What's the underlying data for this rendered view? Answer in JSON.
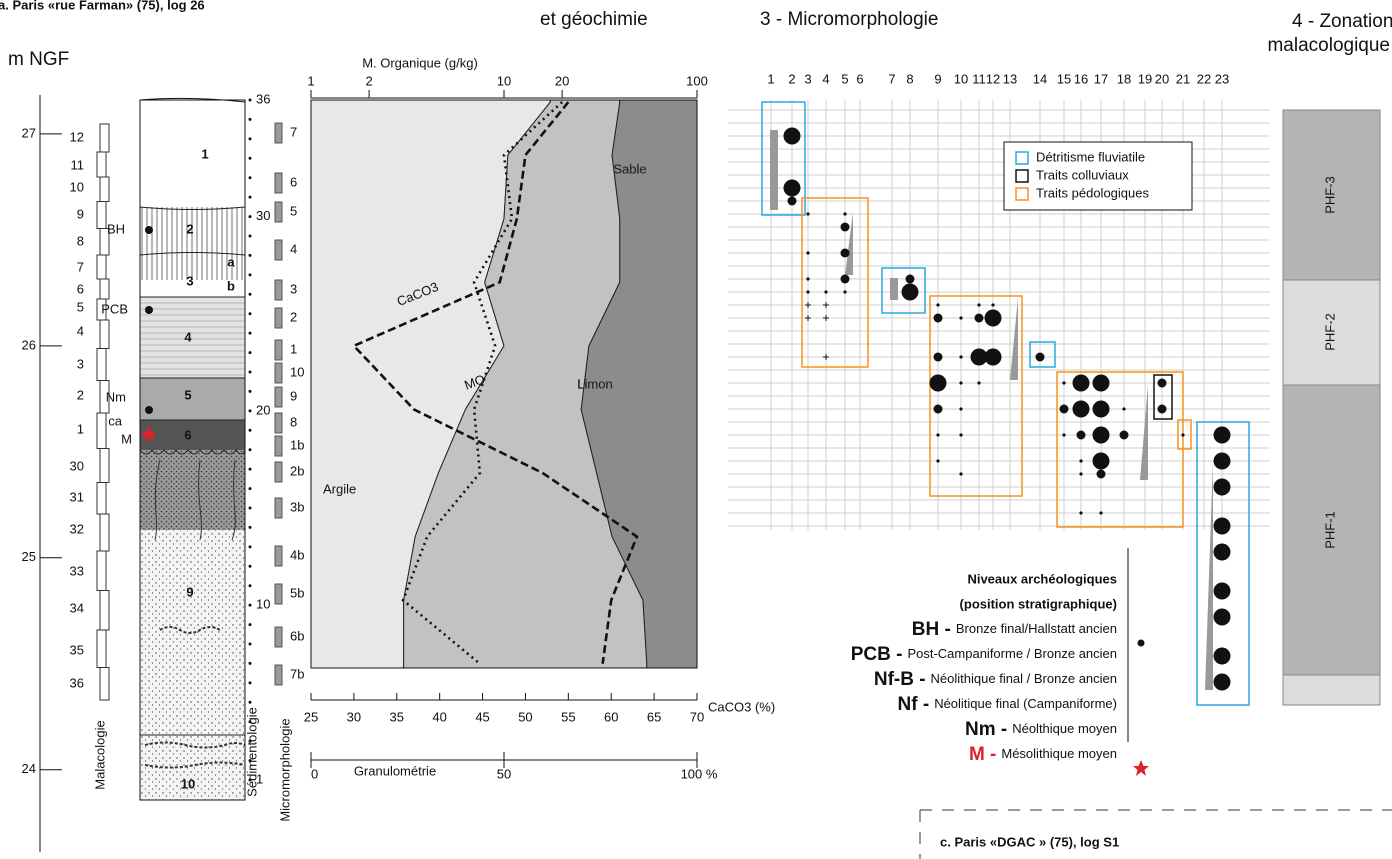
{
  "header": {
    "title_a": "a. Paris «rue Farman» (75), log 26",
    "section2": "et géochimie",
    "section3": "3 - Micromorphologie",
    "section4": [
      "4 - Zonation",
      "malacologique"
    ]
  },
  "log": {
    "axis_label": "m NGF",
    "depth_ticks": [
      27,
      26,
      25,
      24
    ],
    "malacology_samples": [
      "12",
      "11",
      "10",
      "9",
      "8",
      "7",
      "6",
      "5",
      "4",
      "3",
      "2",
      "1",
      "30",
      "31",
      "32",
      "33",
      "34",
      "35",
      "36"
    ],
    "layers": [
      "1",
      "2",
      "3",
      "4",
      "5",
      "6",
      "9",
      "10"
    ],
    "sublayers": [
      "a",
      "b"
    ],
    "archaeo_marks": [
      "BH",
      "PCB",
      "Nm",
      "ca",
      "M"
    ],
    "sedimentology_samples": [
      36,
      30,
      20,
      10,
      1
    ],
    "micromorphology_samples": [
      "7",
      "6",
      "5",
      "4",
      "3",
      "2",
      "1",
      "10",
      "9",
      "8",
      "1b",
      "2b",
      "3b",
      "4b",
      "5b",
      "6b",
      "7b"
    ],
    "column_labels": [
      "Malacologie",
      "Sédimentologie",
      "Micromorphologie"
    ]
  },
  "chart_data": {
    "type": "area",
    "x": [
      27.15,
      26.9,
      26.6,
      26.3,
      26.0,
      25.7,
      25.4,
      25.1,
      24.8,
      24.5
    ],
    "xlim": [
      27.16,
      24.48
    ],
    "series": [
      {
        "name": "Argile",
        "color": "#e8e8e8",
        "values": [
          62,
          51,
          50,
          45,
          50,
          40,
          33,
          27,
          24,
          24
        ]
      },
      {
        "name": "Limon",
        "color": "#c2c2c2",
        "values": [
          18,
          27,
          30,
          35,
          22,
          30,
          41,
          51,
          62,
          63
        ]
      },
      {
        "name": "Sable",
        "color": "#8c8c8c",
        "values": [
          20,
          22,
          20,
          20,
          28,
          30,
          26,
          22,
          14,
          13
        ]
      },
      {
        "name": "CaCO3",
        "axis": "y2",
        "color": "#111111",
        "dash": "dashed",
        "values": [
          55,
          50,
          49,
          47,
          30,
          37,
          52,
          63,
          60,
          59
        ]
      },
      {
        "name": "MO",
        "axis": "y3",
        "color": "#111111",
        "dash": "dotted",
        "values": [
          20,
          10,
          11,
          7,
          9,
          7,
          7.5,
          4,
          3,
          7.5
        ]
      }
    ],
    "y_label": "Granulométrie",
    "ylim": [
      0,
      100
    ],
    "yticks": [
      0,
      50,
      {
        "value": 100,
        "label": "100 %"
      }
    ],
    "y2_label": "CaCO3 (%)",
    "y2lim": [
      25,
      70
    ],
    "y2ticks": [
      25,
      30,
      35,
      40,
      45,
      50,
      55,
      60,
      65,
      70
    ],
    "y3_label": "M. Organique (g/kg)",
    "y3lim": [
      1,
      100
    ],
    "y3ticks": [
      1,
      2,
      10,
      20,
      100
    ],
    "y3_log": true
  },
  "micromorphology": {
    "columns": [
      1,
      2,
      3,
      4,
      5,
      6,
      7,
      8,
      9,
      10,
      11,
      12,
      13,
      14,
      15,
      16,
      17,
      18,
      19,
      20,
      21,
      22,
      23
    ],
    "legend": [
      {
        "label": "Détritisme fluviatile",
        "color": "#29abe2"
      },
      {
        "label": "Traits colluviaux",
        "color": "#111111"
      },
      {
        "label": "Traits pédologiques",
        "color": "#f7931e"
      }
    ],
    "dots": [
      [
        2,
        2,
        3
      ],
      [
        2,
        6,
        3
      ],
      [
        2,
        7,
        2
      ],
      [
        3,
        8,
        1
      ],
      [
        5,
        8,
        1
      ],
      [
        5,
        9,
        2
      ],
      [
        3,
        11,
        1
      ],
      [
        5,
        11,
        2
      ],
      [
        3,
        13,
        1
      ],
      [
        5,
        13,
        2
      ],
      [
        3,
        14,
        1
      ],
      [
        4,
        14,
        1
      ],
      [
        5,
        14,
        1
      ],
      [
        3,
        15,
        0
      ],
      [
        4,
        15,
        0
      ],
      [
        3,
        16,
        0
      ],
      [
        4,
        16,
        0
      ],
      [
        4,
        19,
        0
      ],
      [
        8,
        13,
        2
      ],
      [
        8,
        14,
        3
      ],
      [
        9,
        15,
        1
      ],
      [
        11,
        15,
        1
      ],
      [
        12,
        15,
        1
      ],
      [
        9,
        16,
        2
      ],
      [
        10,
        16,
        1
      ],
      [
        11,
        16,
        2
      ],
      [
        12,
        16,
        3
      ],
      [
        9,
        19,
        2
      ],
      [
        10,
        19,
        1
      ],
      [
        11,
        19,
        3
      ],
      [
        12,
        19,
        3
      ],
      [
        9,
        21,
        3
      ],
      [
        10,
        21,
        1
      ],
      [
        11,
        21,
        1
      ],
      [
        9,
        23,
        2
      ],
      [
        10,
        23,
        1
      ],
      [
        9,
        25,
        1
      ],
      [
        10,
        25,
        1
      ],
      [
        9,
        27,
        1
      ],
      [
        10,
        28,
        1
      ],
      [
        14,
        19,
        2
      ],
      [
        15,
        21,
        1
      ],
      [
        16,
        21,
        3
      ],
      [
        17,
        21,
        3
      ],
      [
        15,
        23,
        2
      ],
      [
        16,
        23,
        3
      ],
      [
        17,
        23,
        3
      ],
      [
        18,
        23,
        1
      ],
      [
        15,
        25,
        1
      ],
      [
        16,
        25,
        2
      ],
      [
        17,
        25,
        3
      ],
      [
        18,
        25,
        2
      ],
      [
        16,
        27,
        1
      ],
      [
        17,
        27,
        3
      ],
      [
        16,
        28,
        1
      ],
      [
        17,
        28,
        2
      ],
      [
        16,
        31,
        1
      ],
      [
        17,
        31,
        1
      ],
      [
        20,
        21,
        2
      ],
      [
        20,
        23,
        2
      ],
      [
        21,
        25,
        1
      ],
      [
        23,
        25,
        3
      ],
      [
        23,
        27,
        3
      ],
      [
        23,
        29,
        3
      ],
      [
        23,
        32,
        3
      ],
      [
        23,
        34,
        3
      ],
      [
        23,
        37,
        3
      ],
      [
        23,
        39,
        3
      ],
      [
        23,
        42,
        3
      ],
      [
        23,
        44,
        3
      ]
    ]
  },
  "zonation": [
    "PHF-3",
    "PHF-2",
    "PHF-1"
  ],
  "levels": {
    "title": [
      "Niveaux archéologiques",
      "(position stratigraphique)"
    ],
    "items": [
      {
        "code": "BH -",
        "label": "Bronze final/Hallstatt ancien"
      },
      {
        "code": "PCB -",
        "label": "Post-Campaniforme / Bronze ancien"
      },
      {
        "code": "Nf-B -",
        "label": "Néolithique final / Bronze ancien"
      },
      {
        "code": "Nf -",
        "label": "Néolitique final (Campaniforme)"
      },
      {
        "code": "Nm -",
        "label": "Néolthique moyen"
      },
      {
        "code": "M -",
        "label": "Mésolithique moyen"
      }
    ]
  },
  "footer": "c. Paris «DGAC » (75), log S1"
}
